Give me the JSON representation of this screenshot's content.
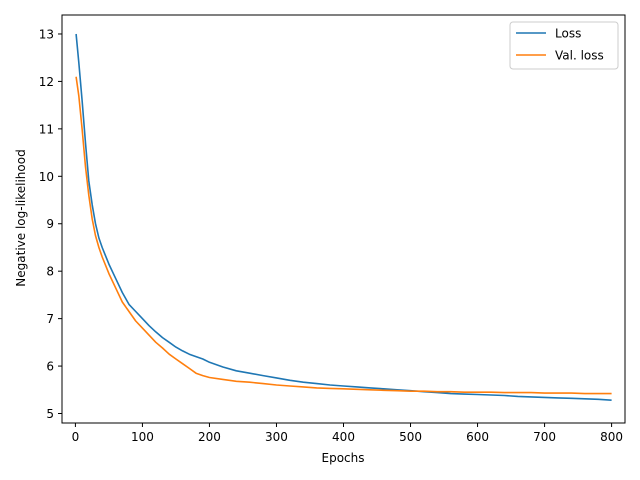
{
  "chart_data": {
    "type": "line",
    "title": "",
    "xlabel": "Epochs",
    "ylabel": "Negative log-likelihood",
    "xlim": [
      -20,
      820
    ],
    "ylim": [
      4.8,
      13.4
    ],
    "xticks": [
      0,
      100,
      200,
      300,
      400,
      500,
      600,
      700,
      800
    ],
    "yticks": [
      5,
      6,
      7,
      8,
      9,
      10,
      11,
      12,
      13
    ],
    "grid": false,
    "legend_position": "top-right",
    "series": [
      {
        "name": "Loss",
        "color": "#1f77b4",
        "x": [
          1,
          5,
          10,
          15,
          20,
          25,
          30,
          35,
          40,
          50,
          60,
          70,
          80,
          90,
          100,
          110,
          120,
          130,
          140,
          150,
          160,
          170,
          180,
          190,
          200,
          220,
          240,
          260,
          280,
          300,
          320,
          340,
          360,
          380,
          400,
          420,
          440,
          460,
          480,
          500,
          520,
          540,
          560,
          580,
          600,
          620,
          640,
          660,
          680,
          700,
          720,
          740,
          760,
          780,
          800
        ],
        "values": [
          13.0,
          12.4,
          11.6,
          10.7,
          9.9,
          9.4,
          9.0,
          8.7,
          8.5,
          8.15,
          7.85,
          7.55,
          7.3,
          7.15,
          7.0,
          6.85,
          6.72,
          6.6,
          6.5,
          6.4,
          6.32,
          6.25,
          6.2,
          6.15,
          6.08,
          5.98,
          5.9,
          5.85,
          5.8,
          5.75,
          5.7,
          5.66,
          5.63,
          5.6,
          5.58,
          5.56,
          5.54,
          5.52,
          5.5,
          5.48,
          5.46,
          5.44,
          5.42,
          5.41,
          5.4,
          5.39,
          5.38,
          5.36,
          5.35,
          5.34,
          5.33,
          5.32,
          5.31,
          5.3,
          5.28
        ]
      },
      {
        "name": "Val. loss",
        "color": "#ff7f0e",
        "x": [
          1,
          5,
          10,
          15,
          20,
          25,
          30,
          35,
          40,
          50,
          60,
          70,
          80,
          90,
          100,
          110,
          120,
          130,
          140,
          150,
          160,
          170,
          180,
          190,
          200,
          220,
          240,
          260,
          280,
          300,
          320,
          340,
          360,
          380,
          400,
          420,
          440,
          460,
          480,
          500,
          520,
          540,
          560,
          580,
          600,
          620,
          640,
          660,
          680,
          700,
          720,
          740,
          760,
          780,
          800
        ],
        "values": [
          12.1,
          11.7,
          11.0,
          10.2,
          9.6,
          9.1,
          8.75,
          8.5,
          8.3,
          7.95,
          7.65,
          7.35,
          7.15,
          6.95,
          6.8,
          6.65,
          6.5,
          6.38,
          6.25,
          6.15,
          6.05,
          5.95,
          5.85,
          5.8,
          5.76,
          5.72,
          5.68,
          5.66,
          5.63,
          5.6,
          5.58,
          5.56,
          5.54,
          5.53,
          5.52,
          5.51,
          5.5,
          5.49,
          5.48,
          5.47,
          5.47,
          5.46,
          5.46,
          5.45,
          5.45,
          5.45,
          5.44,
          5.44,
          5.44,
          5.43,
          5.43,
          5.43,
          5.42,
          5.42,
          5.42
        ]
      }
    ]
  }
}
